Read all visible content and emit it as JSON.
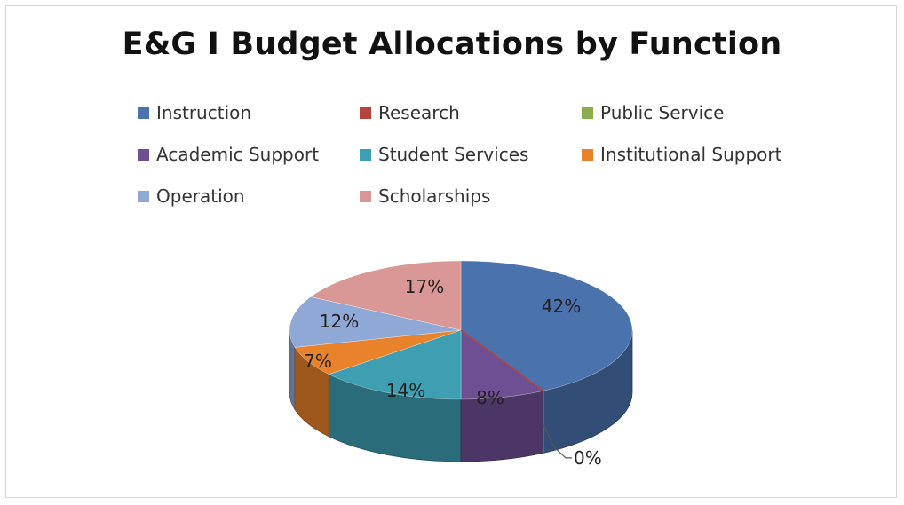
{
  "chart_data": {
    "type": "pie",
    "title": "E&G I Budget Allocations by Function",
    "legend_position": "top",
    "categories": [
      "Instruction",
      "Research",
      "Public Service",
      "Academic Support",
      "Student Services",
      "Institutional Support",
      "Operation",
      "Scholarships"
    ],
    "values": [
      42,
      0,
      0,
      8,
      14,
      7,
      12,
      17
    ],
    "labels": [
      "42%",
      "0%",
      "",
      "8%",
      "14%",
      "7%",
      "12%",
      "17%"
    ],
    "colors": [
      "#4a72ad",
      "#b5443f",
      "#8cad4c",
      "#6f4f94",
      "#3e9fb3",
      "#e8822b",
      "#8fa8d6",
      "#d99795"
    ]
  }
}
